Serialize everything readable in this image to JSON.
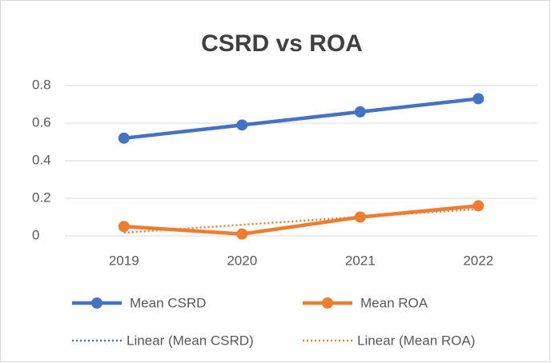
{
  "chart_data": {
    "type": "line",
    "title": "CSRD vs ROA",
    "categories": [
      "2019",
      "2020",
      "2021",
      "2022"
    ],
    "series": [
      {
        "name": "Mean CSRD",
        "color": "#4472c4",
        "values": [
          0.52,
          0.59,
          0.66,
          0.73
        ],
        "trendline": {
          "type": "linear",
          "name": "Linear (Mean CSRD)"
        }
      },
      {
        "name": "Mean ROA",
        "color": "#ed7d31",
        "values": [
          0.05,
          0.01,
          0.1,
          0.16
        ],
        "trendline": {
          "type": "linear",
          "name": "Linear (Mean ROA)"
        }
      }
    ],
    "ylim": [
      0,
      0.8
    ],
    "yticks": [
      0,
      0.2,
      0.4,
      0.6,
      0.8
    ],
    "grid": true,
    "legend": "bottom"
  }
}
